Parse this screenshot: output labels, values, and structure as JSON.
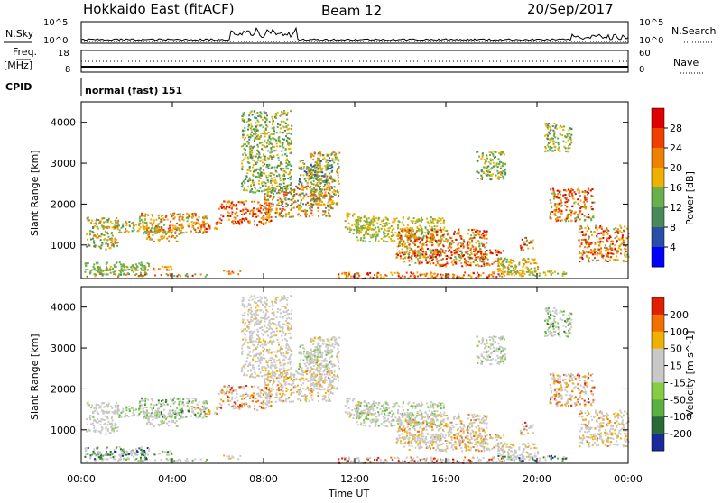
{
  "header": {
    "station": "Hokkaido East (fitACF)",
    "beam": "Beam 12",
    "date": "20/Sep/2017"
  },
  "top_panels": {
    "nsky_label": "N.Sky",
    "nsearch_label": "N.Search",
    "nsky_ticks": [
      "10^5",
      "10^0"
    ],
    "nsky_right_ticks": [
      "10^5",
      "10^0"
    ],
    "freq_label_top": "Freq.",
    "freq_label_unit": "[MHz]",
    "freq_ticks": [
      "18",
      "8"
    ],
    "nave_ticks": [
      "60",
      "0"
    ],
    "nave_label": "Nave",
    "cpid_label": "CPID",
    "cpid_value": "normal (fast) 151"
  },
  "colors": {
    "power": [
      "#0000ff",
      "#2a4ea8",
      "#4a8a5a",
      "#6ab04a",
      "#f0b000",
      "#f08000",
      "#f04000",
      "#e00000"
    ],
    "velocity": [
      "#1a2a9a",
      "#2a6a3a",
      "#5ab040",
      "#88cc44",
      "#c8c8c8",
      "#c8c8c8",
      "#f0b000",
      "#f07000",
      "#e02000"
    ]
  },
  "chart_data": [
    {
      "type": "heatmap",
      "name": "power",
      "ylabel": "Slant Range [km]",
      "colorbar_label": "Power [dB]",
      "colorbar_ticks": [
        "28",
        "24",
        "20",
        "16",
        "12",
        "8",
        "4"
      ],
      "xlabel": "Time UT",
      "x_ticks": [
        "00:00",
        "04:00",
        "08:00",
        "12:00",
        "16:00",
        "20:00",
        "00:00"
      ],
      "y_ticks": [
        "4000",
        "3000",
        "2000",
        "1000"
      ],
      "xlim": [
        0,
        24
      ],
      "ylim": [
        180,
        4500
      ]
    },
    {
      "type": "heatmap",
      "name": "velocity",
      "ylabel": "Slant Range [km]",
      "colorbar_label": "Velocity [m s^-1]",
      "colorbar_ticks": [
        "200",
        "100",
        "50",
        "15",
        "-15",
        "-50",
        "-100",
        "-200"
      ],
      "xlabel": "Time UT",
      "x_ticks": [
        "00:00",
        "04:00",
        "08:00",
        "12:00",
        "16:00",
        "20:00",
        "00:00"
      ],
      "y_ticks": [
        "4000",
        "3000",
        "2000",
        "1000"
      ],
      "xlim": [
        0,
        24
      ],
      "ylim": [
        180,
        4500
      ]
    }
  ],
  "axis": {
    "xlabel": "Time UT",
    "ylabel": "Slant Range [km]"
  }
}
